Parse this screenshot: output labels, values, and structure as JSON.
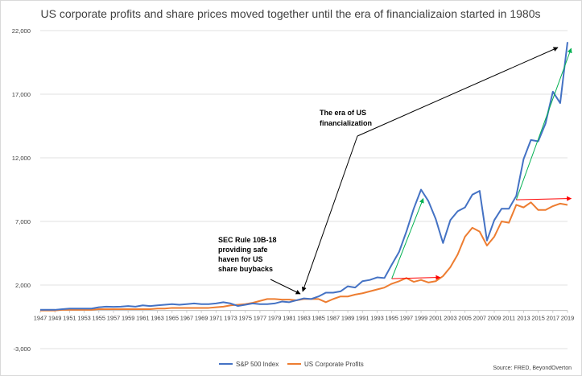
{
  "chart_data": {
    "type": "line",
    "title": "US corporate profits and share prices moved together until the era of financializaion started in 1980s",
    "xlabel": "",
    "ylabel": "",
    "ylim": [
      -3000,
      22000
    ],
    "yticks": [
      22000,
      17000,
      12000,
      7000,
      2000,
      -3000
    ],
    "ytick_labels": [
      "22,000",
      "17,000",
      "12,000",
      "7,000",
      "2,000",
      "-3,000"
    ],
    "grid": "horizontal",
    "legend_position": "bottom",
    "x": [
      1947,
      1948,
      1949,
      1950,
      1951,
      1952,
      1953,
      1954,
      1955,
      1956,
      1957,
      1958,
      1959,
      1960,
      1961,
      1962,
      1963,
      1964,
      1965,
      1966,
      1967,
      1968,
      1969,
      1970,
      1971,
      1972,
      1973,
      1974,
      1975,
      1976,
      1977,
      1978,
      1979,
      1980,
      1981,
      1982,
      1983,
      1984,
      1985,
      1986,
      1987,
      1988,
      1989,
      1990,
      1991,
      1992,
      1993,
      1994,
      1995,
      1996,
      1997,
      1998,
      1999,
      2000,
      2001,
      2002,
      2003,
      2004,
      2005,
      2006,
      2007,
      2008,
      2009,
      2010,
      2011,
      2012,
      2013,
      2014,
      2015,
      2016,
      2017,
      2018,
      2019
    ],
    "x_tick_labels": [
      "1947",
      "1949",
      "1951",
      "1953",
      "1955",
      "1957",
      "1959",
      "1961",
      "1963",
      "1965",
      "1967",
      "1969",
      "1971",
      "1973",
      "1975",
      "1977",
      "1979",
      "1981",
      "1983",
      "1985",
      "1987",
      "1989",
      "1991",
      "1993",
      "1995",
      "1997",
      "1999",
      "2001",
      "2003",
      "2005",
      "2007",
      "2009",
      "2011",
      "2013",
      "2015",
      "2017",
      "2019"
    ],
    "series": [
      {
        "name": "S&P 500 Index",
        "color": "#4472c4",
        "values": [
          50,
          50,
          50,
          100,
          150,
          150,
          150,
          150,
          250,
          300,
          280,
          300,
          350,
          300,
          400,
          350,
          400,
          450,
          500,
          450,
          500,
          550,
          500,
          500,
          550,
          650,
          550,
          350,
          450,
          550,
          500,
          500,
          550,
          700,
          650,
          800,
          950,
          900,
          1100,
          1400,
          1400,
          1500,
          1900,
          1800,
          2300,
          2400,
          2600,
          2550,
          3600,
          4600,
          6200,
          8000,
          9500,
          8600,
          7200,
          5300,
          7100,
          7800,
          8100,
          9100,
          9400,
          5500,
          7100,
          8000,
          8000,
          9000,
          11900,
          13400,
          13300,
          14700,
          17200,
          16300,
          21100
        ]
      },
      {
        "name": "US Corporate Profits",
        "color": "#ed7d31",
        "values": [
          0,
          0,
          0,
          50,
          50,
          50,
          50,
          50,
          100,
          100,
          100,
          100,
          100,
          100,
          100,
          100,
          150,
          150,
          200,
          200,
          200,
          200,
          200,
          200,
          250,
          300,
          400,
          450,
          500,
          600,
          750,
          900,
          900,
          850,
          850,
          800,
          900,
          900,
          900,
          650,
          900,
          1100,
          1100,
          1250,
          1350,
          1500,
          1650,
          1800,
          2100,
          2300,
          2550,
          2250,
          2400,
          2200,
          2300,
          2700,
          3400,
          4400,
          5800,
          6500,
          6200,
          5100,
          5800,
          7000,
          6900,
          8300,
          8100,
          8500,
          7900,
          7900,
          8200,
          8400,
          8300
        ]
      }
    ],
    "annotations": [
      {
        "lines": [
          "The era of US",
          "financialization"
        ]
      },
      {
        "lines": [
          "SEC Rule 10B-18",
          "providing safe",
          "haven for US",
          "share buybacks"
        ]
      }
    ],
    "source": "Source: FRED, BeyondOverton"
  },
  "colors": {
    "sp500": "#4472c4",
    "profits": "#ed7d31",
    "trend_up": "#00b050",
    "trend_flat": "#ff0000",
    "annotation_arrow": "#000000",
    "grid": "#d9d9d9",
    "axis": "#bfbfbf"
  }
}
